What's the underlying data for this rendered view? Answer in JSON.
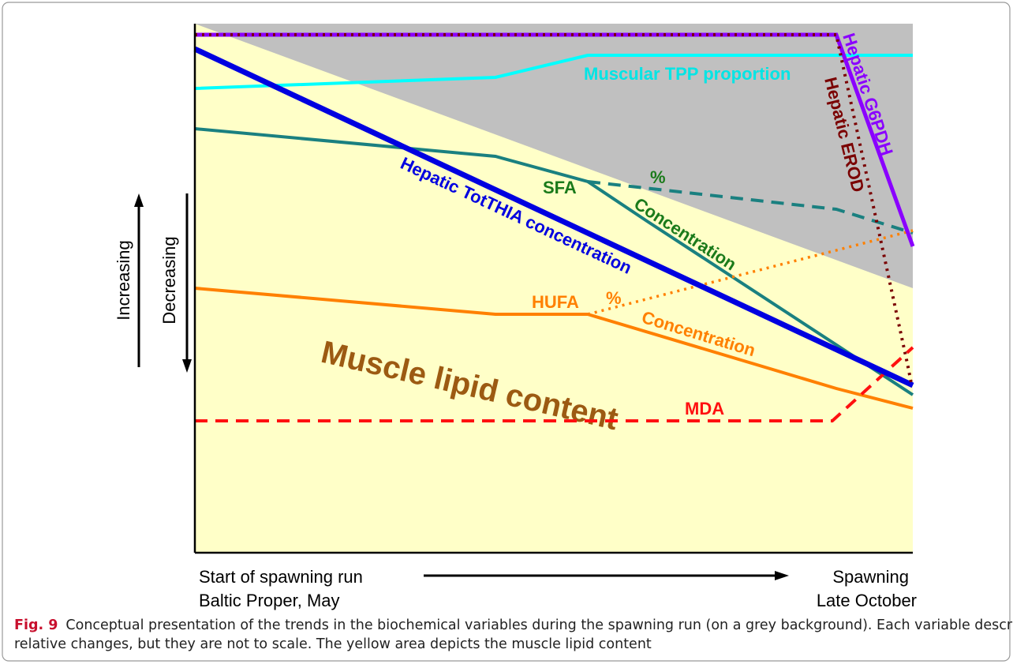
{
  "diagram": {
    "labels": {
      "tpp": "Muscular TPP proportion",
      "g6pdh": "Hepatic G6PDH",
      "erod": "Hepatic EROD",
      "totthia": "Hepatic TotTHIA concentration",
      "sfa": "SFA",
      "sfa_pct": "%",
      "sfa_conc": "Concentration",
      "hufa": "HUFA",
      "hufa_pct": "%",
      "hufa_conc": "Concentration",
      "mda": "MDA",
      "lipid": "Muscle lipid content",
      "increasing": "Increasing",
      "decreasing": "Decreasing",
      "start_1": "Start of spawning run",
      "start_2": "Baltic Proper, May",
      "end_1": "Spawning",
      "end_2": "Late October"
    },
    "caption": {
      "label": "Fig. 9",
      "line_1": "Conceptual presentation of the trends in the biochemical variables during the spawning run (on a grey background). Each variable describes",
      "line_2": "relative changes, but they are not to scale. The yellow area depicts the muscle lipid content"
    }
  }
}
